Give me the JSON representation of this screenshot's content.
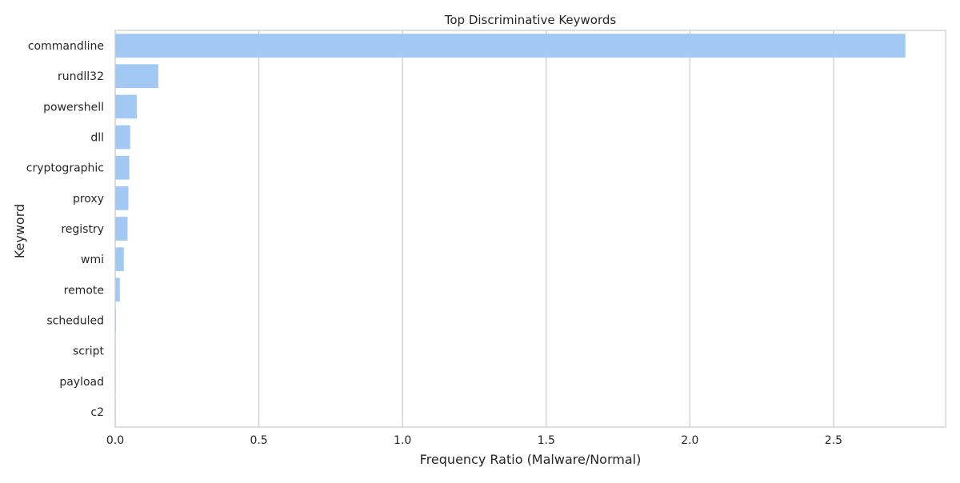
{
  "chart_data": {
    "type": "bar",
    "orientation": "horizontal",
    "title": "Top Discriminative Keywords",
    "xlabel": "Frequency Ratio (Malware/Normal)",
    "ylabel": "Keyword",
    "categories": [
      "commandline",
      "rundll32",
      "powershell",
      "dll",
      "cryptographic",
      "proxy",
      "registry",
      "wmi",
      "remote",
      "scheduled",
      "script",
      "payload",
      "c2"
    ],
    "values": [
      2.75,
      0.15,
      0.075,
      0.052,
      0.049,
      0.046,
      0.043,
      0.03,
      0.016,
      0.003,
      0.002,
      0.002,
      0.002
    ],
    "xlim": [
      0,
      2.89
    ],
    "xticks": [
      0,
      0.5,
      1,
      1.5,
      2,
      2.5
    ],
    "xtick_labels": [
      "0.0",
      "0.5",
      "1.0",
      "1.5",
      "2.0",
      "2.5"
    ],
    "grid": "vertical",
    "bar_color": "#a1c9f4",
    "grid_color": "#cccccc",
    "spine_color": "#cccccc"
  }
}
